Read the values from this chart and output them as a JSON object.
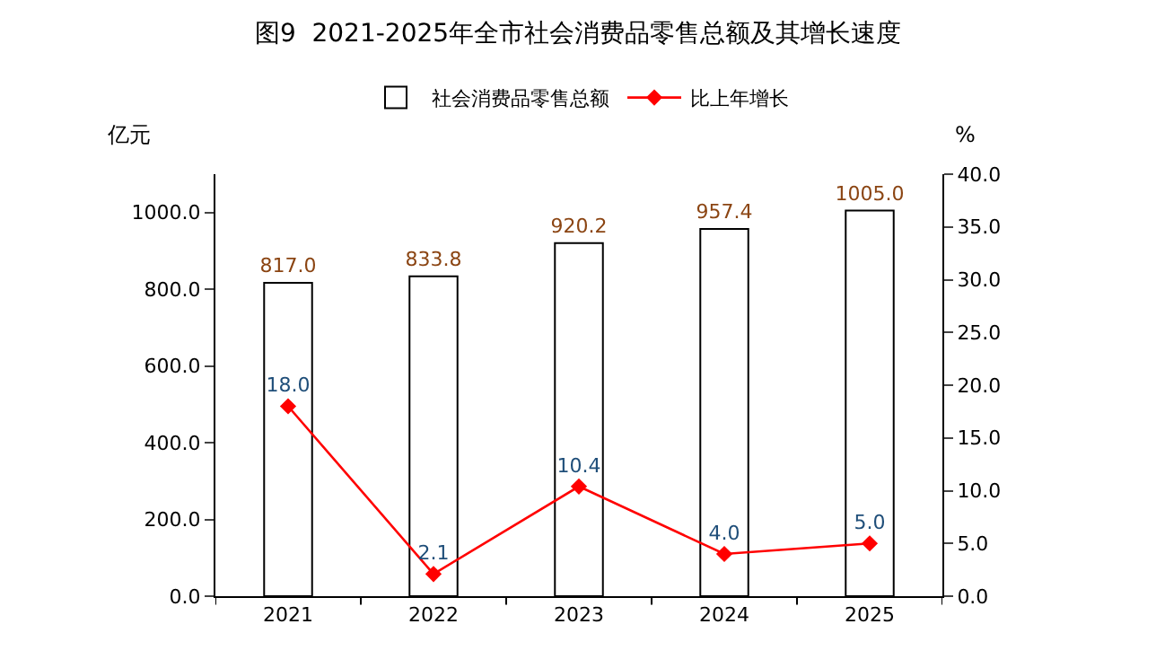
{
  "chart_data": {
    "type": "bar",
    "title": "图9  2021-2025年全市社会消费品零售总额及其增长速度",
    "ylabel": "亿元",
    "y2label": "%",
    "categories": [
      "2021",
      "2022",
      "2023",
      "2024",
      "2025"
    ],
    "series": [
      {
        "name": "社会消费品零售总额",
        "color": "#ffffff",
        "values": [
          817.0,
          833.8,
          920.2,
          957.4,
          1005.0
        ],
        "value_labels": [
          "817.0",
          "833.8",
          "920.2",
          "957.4",
          "1005.0"
        ]
      },
      {
        "name": "比上年增长",
        "type": "line",
        "axis": "y2",
        "color": "#ff0000",
        "marker": "diamond",
        "values": [
          18.0,
          2.1,
          10.4,
          4.0,
          5.0
        ],
        "value_labels": [
          "18.0",
          "2.1",
          "10.4",
          "4.0",
          "5.0"
        ]
      }
    ],
    "ylim": [
      0,
      1100
    ],
    "yticks": [
      {
        "value": 0,
        "label": "0.0"
      },
      {
        "value": 200,
        "label": "200.0"
      },
      {
        "value": 400,
        "label": "400.0"
      },
      {
        "value": 600,
        "label": "600.0"
      },
      {
        "value": 800,
        "label": "800.0"
      },
      {
        "value": 1000,
        "label": "1000.0"
      }
    ],
    "y2lim": [
      0,
      40
    ],
    "y2ticks": [
      {
        "value": 0,
        "label": "0.0"
      },
      {
        "value": 5,
        "label": "5.0"
      },
      {
        "value": 10,
        "label": "10.0"
      },
      {
        "value": 15,
        "label": "15.0"
      },
      {
        "value": 20,
        "label": "20.0"
      },
      {
        "value": 25,
        "label": "25.0"
      },
      {
        "value": 30,
        "label": "30.0"
      },
      {
        "value": 35,
        "label": "35.0"
      },
      {
        "value": 40,
        "label": "40.0"
      }
    ],
    "legend": "top"
  }
}
